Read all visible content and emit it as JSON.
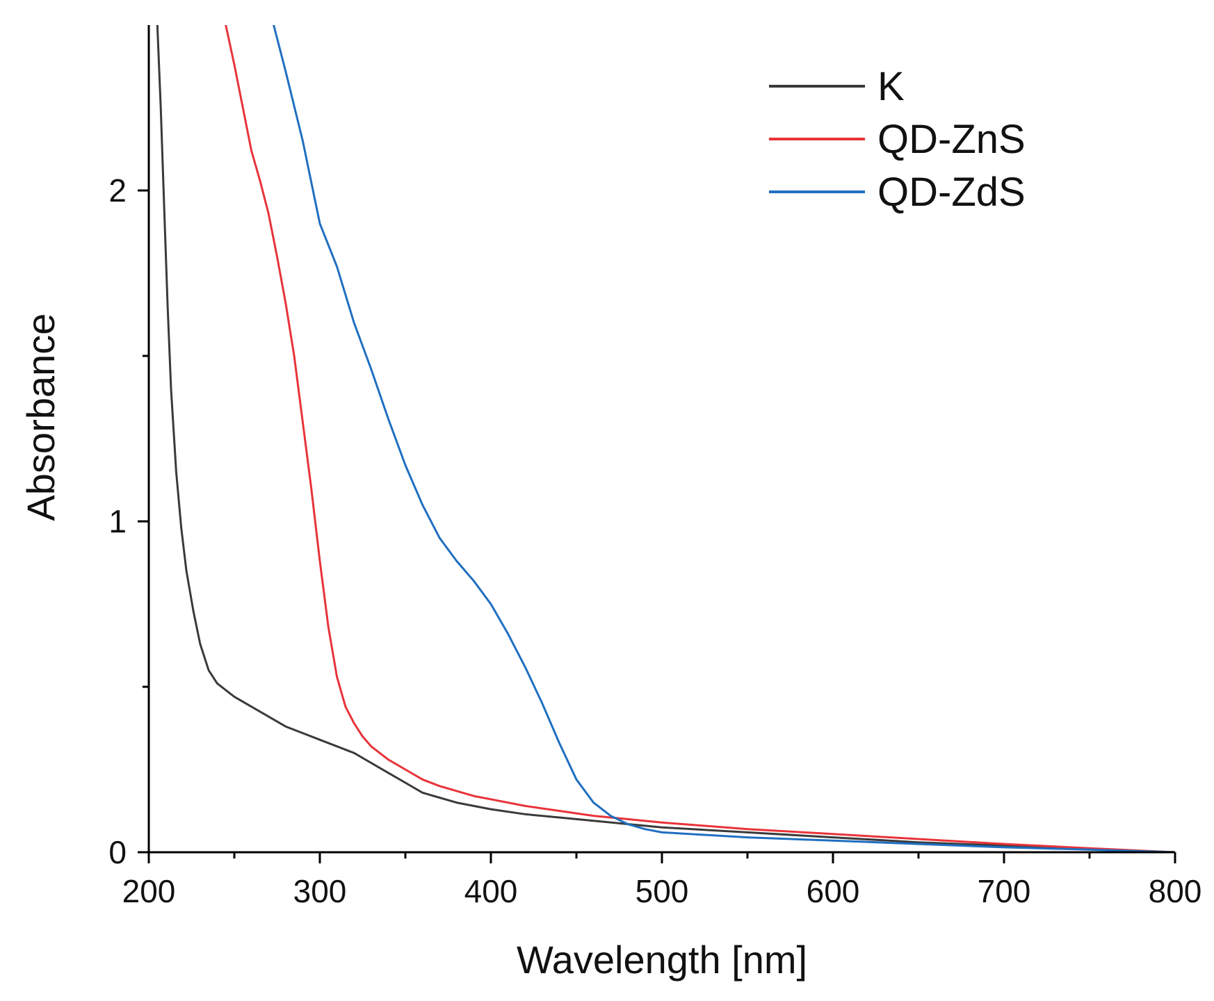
{
  "chart_data": {
    "type": "line",
    "title": "",
    "xlabel": "Wavelength [nm]",
    "ylabel": "Absorbance",
    "xlim": [
      200,
      800
    ],
    "ylim": [
      0,
      2.5
    ],
    "xticks": [
      200,
      300,
      400,
      500,
      600,
      700,
      800
    ],
    "xtick_labels": [
      "200",
      "300",
      "400",
      "500",
      "600",
      "700",
      "800"
    ],
    "yticks": [
      0,
      1,
      2
    ],
    "ytick_labels": [
      "0",
      "1",
      "2"
    ],
    "grid": false,
    "legend_position": "top-right",
    "series": [
      {
        "name": "K",
        "color": "#3a3a3a",
        "x": [
          205,
          207,
          209,
          211,
          213,
          216,
          219,
          222,
          226,
          230,
          235,
          240,
          250,
          260,
          270,
          280,
          290,
          300,
          310,
          320,
          330,
          340,
          350,
          360,
          370,
          380,
          390,
          400,
          420,
          440,
          460,
          480,
          500,
          550,
          600,
          650,
          700,
          750,
          800
        ],
        "y": [
          2.5,
          2.25,
          1.95,
          1.65,
          1.4,
          1.15,
          0.98,
          0.85,
          0.73,
          0.63,
          0.55,
          0.51,
          0.47,
          0.44,
          0.41,
          0.38,
          0.36,
          0.34,
          0.32,
          0.3,
          0.27,
          0.24,
          0.21,
          0.18,
          0.165,
          0.15,
          0.14,
          0.13,
          0.115,
          0.105,
          0.095,
          0.085,
          0.075,
          0.06,
          0.045,
          0.03,
          0.02,
          0.01,
          0.0
        ]
      },
      {
        "name": "QD-ZnS",
        "color": "#e8333a",
        "x": [
          245,
          250,
          255,
          260,
          265,
          270,
          275,
          280,
          285,
          290,
          295,
          300,
          305,
          310,
          315,
          320,
          325,
          330,
          340,
          350,
          360,
          370,
          380,
          390,
          400,
          420,
          440,
          460,
          480,
          500,
          550,
          600,
          650,
          700,
          750,
          800
        ],
        "y": [
          2.5,
          2.38,
          2.25,
          2.12,
          2.03,
          1.93,
          1.8,
          1.66,
          1.5,
          1.3,
          1.1,
          0.88,
          0.68,
          0.53,
          0.44,
          0.39,
          0.35,
          0.32,
          0.28,
          0.25,
          0.22,
          0.2,
          0.185,
          0.17,
          0.16,
          0.14,
          0.125,
          0.11,
          0.1,
          0.09,
          0.07,
          0.055,
          0.04,
          0.025,
          0.012,
          0.0
        ]
      },
      {
        "name": "QD-ZdS",
        "color": "#1f6fc0",
        "x": [
          273,
          280,
          290,
          300,
          310,
          320,
          330,
          340,
          350,
          360,
          370,
          380,
          390,
          400,
          410,
          420,
          430,
          440,
          450,
          460,
          470,
          480,
          490,
          500,
          550,
          600,
          650,
          700,
          750,
          800
        ],
        "y": [
          2.5,
          2.36,
          2.15,
          1.9,
          1.77,
          1.6,
          1.46,
          1.31,
          1.17,
          1.05,
          0.95,
          0.88,
          0.82,
          0.75,
          0.66,
          0.56,
          0.45,
          0.33,
          0.22,
          0.15,
          0.11,
          0.085,
          0.07,
          0.06,
          0.045,
          0.035,
          0.025,
          0.015,
          0.008,
          0.0
        ]
      }
    ]
  }
}
